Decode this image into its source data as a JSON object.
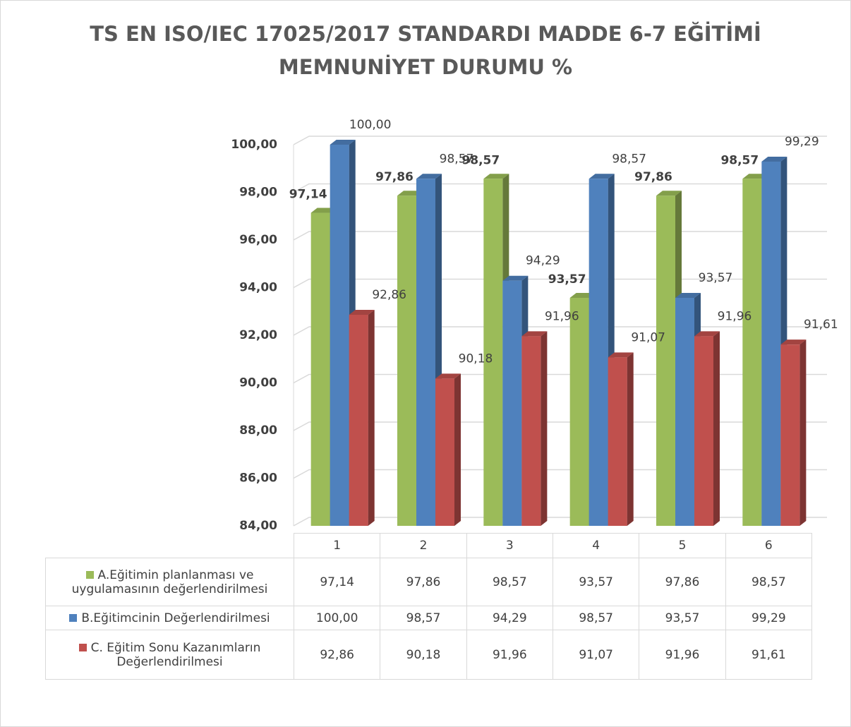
{
  "chart_data": {
    "type": "bar",
    "title": "TS EN ISO/IEC 17025/2017 STANDARDI MADDE 6-7 EĞİTİMİ MEMNUNİYET DURUMU %",
    "categories": [
      "1",
      "2",
      "3",
      "4",
      "5",
      "6"
    ],
    "series": [
      {
        "name": "A.Eğitimin planlanması ve uygulamasının değerlendirilmesi",
        "color": "#9bbb59",
        "values": [
          97.14,
          97.86,
          98.57,
          93.57,
          97.86,
          98.57
        ],
        "value_labels": [
          "97,14",
          "97,86",
          "98,57",
          "93,57",
          "97,86",
          "98,57"
        ]
      },
      {
        "name": "B.Eğitimcinin Değerlendirilmesi",
        "color": "#4f81bd",
        "values": [
          100.0,
          98.57,
          94.29,
          98.57,
          93.57,
          99.29
        ],
        "value_labels": [
          "100,00",
          "98,57",
          "94,29",
          "98,57",
          "93,57",
          "99,29"
        ]
      },
      {
        "name": "C. Eğitim Sonu Kazanımların Değerlendirilmesi",
        "color": "#c0504d",
        "values": [
          92.86,
          90.18,
          91.96,
          91.07,
          91.96,
          91.61
        ],
        "value_labels": [
          "92,86",
          "90,18",
          "91,96",
          "91,07",
          "91,96",
          "91,61"
        ]
      }
    ],
    "ylim": [
      84,
      100
    ],
    "yticks": [
      {
        "value": 84,
        "label": "84,00"
      },
      {
        "value": 86,
        "label": "86,00"
      },
      {
        "value": 88,
        "label": "88,00"
      },
      {
        "value": 90,
        "label": "90,00"
      },
      {
        "value": 92,
        "label": "92,00"
      },
      {
        "value": 94,
        "label": "94,00"
      },
      {
        "value": 96,
        "label": "96,00"
      },
      {
        "value": 98,
        "label": "98,00"
      },
      {
        "value": 100,
        "label": "100,00"
      }
    ],
    "grid": true
  }
}
